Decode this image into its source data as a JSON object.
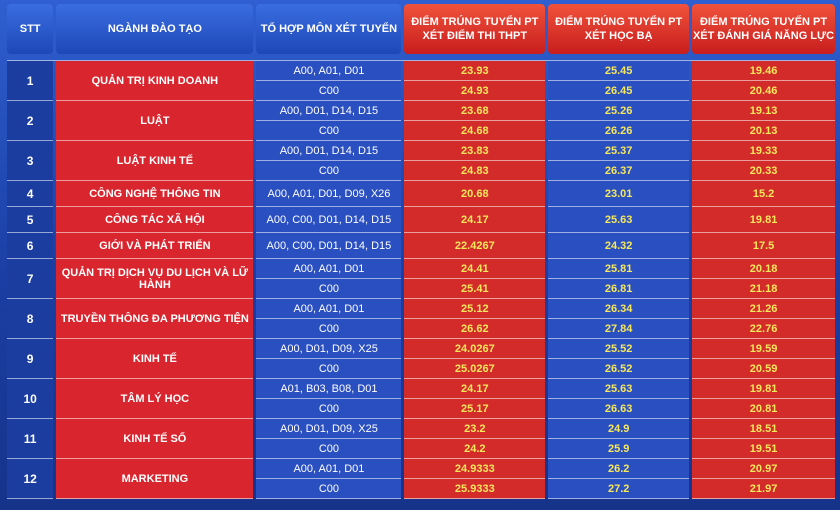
{
  "headers": {
    "stt": "STT",
    "nganh": "NGÀNH ĐÀO TẠO",
    "tohop": "TỔ HỢP MÔN XÉT TUYỂN",
    "thpt": [
      "ĐIỂM TRÚNG TUYỂN PT",
      "XÉT ĐIỂM THI THPT"
    ],
    "hocba": [
      "ĐIỂM TRÚNG TUYỂN PT",
      "XÉT HỌC BẠ"
    ],
    "dgnl": [
      "ĐIỂM TRÚNG TUYỂN PT",
      "XÉT ĐÁNH GIÁ NĂNG LỰC"
    ]
  },
  "colors": {
    "header_blue": "#2a5bd6",
    "header_red": "#e23a2c",
    "score_text": "#f6e85b"
  },
  "rows": [
    {
      "stt": "1",
      "nganh": "QUẢN TRỊ KINH DOANH",
      "subs": [
        {
          "tohop": "A00, A01, D01",
          "thpt": "23.93",
          "hb": "25.45",
          "dgnl": "19.46"
        },
        {
          "tohop": "C00",
          "thpt": "24.93",
          "hb": "26.45",
          "dgnl": "20.46"
        }
      ]
    },
    {
      "stt": "2",
      "nganh": "LUẬT",
      "subs": [
        {
          "tohop": "A00, D01, D14, D15",
          "thpt": "23.68",
          "hb": "25.26",
          "dgnl": "19.13"
        },
        {
          "tohop": "C00",
          "thpt": "24.68",
          "hb": "26.26",
          "dgnl": "20.13"
        }
      ]
    },
    {
      "stt": "3",
      "nganh": "LUẬT KINH TẾ",
      "subs": [
        {
          "tohop": "A00, D01, D14, D15",
          "thpt": "23.83",
          "hb": "25.37",
          "dgnl": "19.33"
        },
        {
          "tohop": "C00",
          "thpt": "24.83",
          "hb": "26.37",
          "dgnl": "20.33"
        }
      ]
    },
    {
      "stt": "4",
      "nganh": "CÔNG NGHỆ THÔNG TIN",
      "subs": [
        {
          "tohop": "A00, A01, D01, D09, X26",
          "thpt": "20.68",
          "hb": "23.01",
          "dgnl": "15.2"
        }
      ]
    },
    {
      "stt": "5",
      "nganh": "CÔNG TÁC XÃ HỘI",
      "subs": [
        {
          "tohop": "A00, C00, D01, D14, D15",
          "thpt": "24.17",
          "hb": "25.63",
          "dgnl": "19.81"
        }
      ]
    },
    {
      "stt": "6",
      "nganh": "GIỚI VÀ PHÁT TRIỂN",
      "subs": [
        {
          "tohop": "A00, C00, D01, D14, D15",
          "thpt": "22.4267",
          "hb": "24.32",
          "dgnl": "17.5"
        }
      ]
    },
    {
      "stt": "7",
      "nganh": "QUẢN TRỊ DỊCH VỤ DU LỊCH VÀ LỮ HÀNH",
      "subs": [
        {
          "tohop": "A00, A01, D01",
          "thpt": "24.41",
          "hb": "25.81",
          "dgnl": "20.18"
        },
        {
          "tohop": "C00",
          "thpt": "25.41",
          "hb": "26.81",
          "dgnl": "21.18"
        }
      ]
    },
    {
      "stt": "8",
      "nganh": "TRUYỀN THÔNG ĐA PHƯƠNG TIỆN",
      "subs": [
        {
          "tohop": "A00, A01, D01",
          "thpt": "25.12",
          "hb": "26.34",
          "dgnl": "21.26"
        },
        {
          "tohop": "C00",
          "thpt": "26.62",
          "hb": "27.84",
          "dgnl": "22.76"
        }
      ]
    },
    {
      "stt": "9",
      "nganh": "KINH TẾ",
      "subs": [
        {
          "tohop": "A00, D01, D09, X25",
          "thpt": "24.0267",
          "hb": "25.52",
          "dgnl": "19.59"
        },
        {
          "tohop": "C00",
          "thpt": "25.0267",
          "hb": "26.52",
          "dgnl": "20.59"
        }
      ]
    },
    {
      "stt": "10",
      "nganh": "TÂM LÝ HỌC",
      "subs": [
        {
          "tohop": "A01, B03, B08, D01",
          "thpt": "24.17",
          "hb": "25.63",
          "dgnl": "19.81"
        },
        {
          "tohop": "C00",
          "thpt": "25.17",
          "hb": "26.63",
          "dgnl": "20.81"
        }
      ]
    },
    {
      "stt": "11",
      "nganh": "KINH TẾ SỐ",
      "subs": [
        {
          "tohop": "A00, D01, D09, X25",
          "thpt": "23.2",
          "hb": "24.9",
          "dgnl": "18.51"
        },
        {
          "tohop": "C00",
          "thpt": "24.2",
          "hb": "25.9",
          "dgnl": "19.51"
        }
      ]
    },
    {
      "stt": "12",
      "nganh": "MARKETING",
      "subs": [
        {
          "tohop": "A00, A01, D01",
          "thpt": "24.9333",
          "hb": "26.2",
          "dgnl": "20.97"
        },
        {
          "tohop": "C00",
          "thpt": "25.9333",
          "hb": "27.2",
          "dgnl": "21.97"
        }
      ]
    }
  ]
}
